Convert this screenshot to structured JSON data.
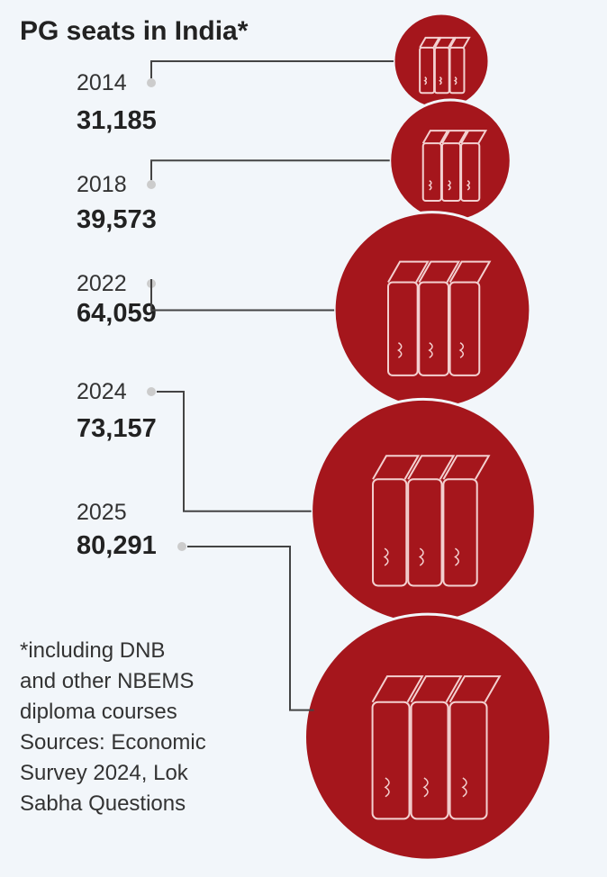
{
  "chart_data": {
    "type": "bubble",
    "title": "PG seats in India*",
    "categories": [
      "2014",
      "2018",
      "2022",
      "2024",
      "2025"
    ],
    "values": [
      31185,
      39573,
      64059,
      73157,
      80291
    ],
    "value_labels": [
      "31,185",
      "39,573",
      "64,059",
      "73,157",
      "80,291"
    ],
    "color": "#a5161c",
    "note": [
      "*including DNB",
      "and other NBEMS",
      "diploma courses",
      "Sources: Economic",
      "Survey 2024, Lok",
      "Sabha Questions"
    ]
  }
}
